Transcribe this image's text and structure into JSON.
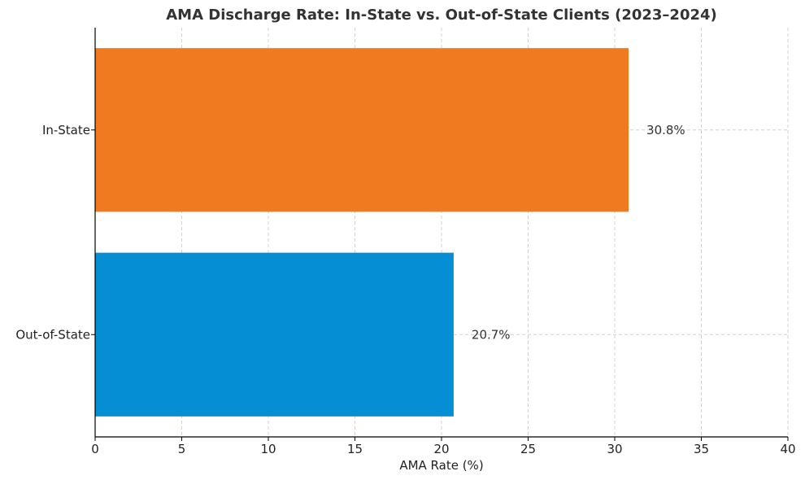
{
  "chart_data": {
    "type": "bar",
    "orientation": "horizontal",
    "title": "AMA Discharge Rate: In-State vs. Out-of-State Clients (2023–2024)",
    "xlabel": "AMA Rate (%)",
    "ylabel": "",
    "categories": [
      "In-State",
      "Out-of-State"
    ],
    "values": [
      30.8,
      20.7
    ],
    "value_labels": [
      "30.8%",
      "20.7%"
    ],
    "colors": [
      "#ef7a20",
      "#058ed3"
    ],
    "xlim": [
      0,
      40
    ],
    "xticks": [
      0,
      5,
      10,
      15,
      20,
      25,
      30,
      35,
      40
    ],
    "xtick_labels": [
      "0",
      "5",
      "10",
      "15",
      "20",
      "25",
      "30",
      "35",
      "40"
    ],
    "grid": true
  }
}
